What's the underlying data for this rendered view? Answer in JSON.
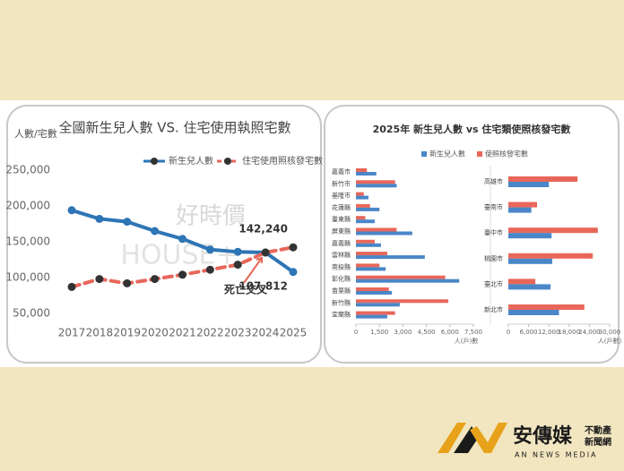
{
  "chart_data": [
    {
      "type": "line",
      "title": "全國新生兒人數 VS. 住宅使用執照宅數",
      "y_label": "人數/宅數",
      "watermark": [
        "好時價",
        "HOUSE+"
      ],
      "annotation": "死亡交叉",
      "categories": [
        "2017",
        "2018",
        "2019",
        "2020",
        "2021",
        "2022",
        "2023",
        "2024",
        "2025"
      ],
      "series": [
        {
          "name": "新生兒人數",
          "color": "#2e75b6",
          "dashed": false,
          "values": [
            194000,
            182000,
            178000,
            165000,
            154000,
            139000,
            136000,
            135000,
            107812
          ],
          "value_labels": [
            null,
            null,
            null,
            null,
            null,
            null,
            null,
            null,
            "107,812"
          ]
        },
        {
          "name": "住宅使用照核發宅數",
          "color": "#e8675a",
          "dashed": true,
          "values": [
            87000,
            98000,
            92000,
            98000,
            104000,
            111000,
            118000,
            135000,
            142240
          ],
          "value_labels": [
            null,
            null,
            null,
            null,
            null,
            null,
            null,
            null,
            "142,240"
          ]
        }
      ],
      "ylim": [
        30000,
        262500
      ],
      "yticks": [
        {
          "value": 50000,
          "label": "50,000"
        },
        {
          "value": 100000,
          "label": "100,000"
        },
        {
          "value": 150000,
          "label": "150,000"
        },
        {
          "value": 200000,
          "label": "200,000"
        },
        {
          "value": 250000,
          "label": "250,000"
        }
      ],
      "grid": false
    },
    {
      "type": "bar",
      "orientation": "horizontal",
      "title": "2025年 新生兒人數 vs 住宅類使照核發宅數",
      "x_label": "人(戶)數",
      "categories": [
        "嘉義市",
        "新竹市",
        "基隆市",
        "花蓮縣",
        "臺東縣",
        "屏東縣",
        "嘉義縣",
        "雲林縣",
        "南投縣",
        "彰化縣",
        "苗栗縣",
        "新竹縣",
        "宜蘭縣"
      ],
      "series": [
        {
          "name": "新生兒人數",
          "color": "#4a86c8",
          "values": [
            1300,
            2600,
            800,
            1500,
            1200,
            3600,
            1600,
            4400,
            1900,
            6600,
            2300,
            2800,
            2000
          ]
        },
        {
          "name": "使照核發宅數",
          "color": "#e8675a",
          "values": [
            700,
            2500,
            500,
            900,
            600,
            2600,
            1200,
            2000,
            1500,
            5700,
            2100,
            5900,
            2500
          ]
        }
      ],
      "xlim": [
        0,
        7500
      ],
      "xticks": [
        0,
        {
          "value": 1500,
          "label": "1,500"
        },
        {
          "value": 3000,
          "label": "3,000"
        },
        {
          "value": 4500,
          "label": "4,500"
        },
        {
          "value": 6000,
          "label": "6,000"
        },
        {
          "value": 7500,
          "label": "7,500"
        }
      ]
    },
    {
      "type": "bar",
      "orientation": "horizontal",
      "x_label": "人(戶數)",
      "categories": [
        "高雄市",
        "臺南市",
        "臺中市",
        "桃園市",
        "臺北市",
        "新北市"
      ],
      "series": [
        {
          "color": "#4a86c8",
          "values": [
            12000,
            6800,
            12800,
            13000,
            12500,
            15000
          ]
        },
        {
          "color": "#e8675a",
          "values": [
            20500,
            8500,
            26500,
            25000,
            8000,
            22500
          ]
        }
      ],
      "xlim": [
        0,
        30000
      ],
      "xticks": [
        0,
        {
          "value": 6000,
          "label": "6,000"
        },
        {
          "value": 12000,
          "label": "12,000"
        },
        {
          "value": 18000,
          "label": "18,000"
        },
        {
          "value": 24000,
          "label": "24,000"
        },
        {
          "value": 30000,
          "label": "30,000"
        }
      ]
    }
  ],
  "logo": {
    "name": "安傳媒",
    "tagline": "不動產",
    "tagline2": "新聞網",
    "english": "AN NEWS MEDIA"
  }
}
